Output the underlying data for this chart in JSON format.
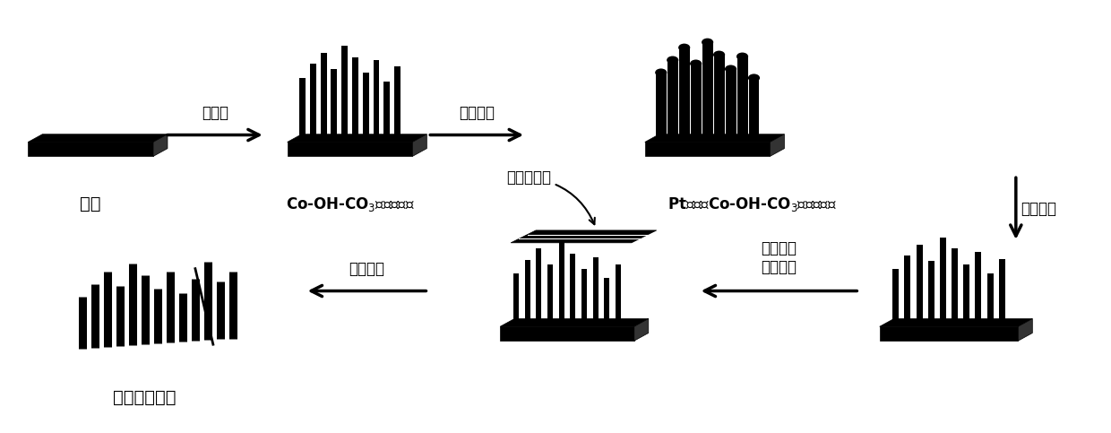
{
  "bg_color": "#ffffff",
  "figsize": [
    12.4,
    4.83
  ],
  "dpi": 100,
  "label_jidi": "基底",
  "label_nanorods": "Co-OH-CO$_3$纳米棒阵列",
  "label_pt_nanorods": "Pt包覆的Co-OH-CO$_3$纳米棒阵列",
  "label_tuihuo": "退火处理",
  "label_lizi": "离子交换膜",
  "label_jinghua": "净化处理",
  "label_youxu": "有序化膜电极",
  "arrow_shuire": "水热法",
  "arrow_cikong": "磁控溅射",
  "arrow_zhuanyin": "转印法制\n备膜电极"
}
